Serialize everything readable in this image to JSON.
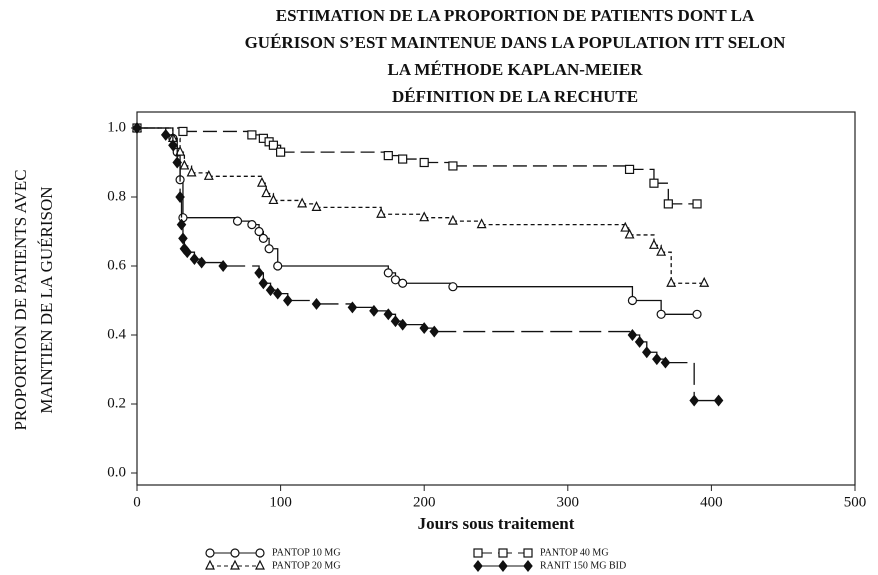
{
  "chart_data": {
    "type": "step",
    "title": [
      "ESTIMATION DE LA PROPORTION DE PATIENTS DONT LA",
      "GUÉRISON S’EST MAINTENUE DANS LA POPULATION ITT SELON",
      "LA MÉTHODE KAPLAN-MEIER",
      "DÉFINITION DE LA RECHUTE"
    ],
    "x_label": "Jours sous traitement",
    "y_label": [
      "PROPORTION DE PATIENTS AVEC",
      "MAINTIEN DE LA GUÉRISON"
    ],
    "xlim": [
      0,
      500
    ],
    "xticks": [
      0,
      100,
      200,
      300,
      400,
      500
    ],
    "ylim": [
      0,
      1
    ],
    "yticks": [
      {
        "value": 0,
        "label": "0.0"
      },
      0.2,
      0.4,
      0.6,
      0.8,
      {
        "value": 1,
        "label": "1.0"
      }
    ],
    "series": [
      {
        "name": "PANTOP 10 MG",
        "color": "#111",
        "marker": "circle",
        "line_style": "solid",
        "x": [
          0,
          25,
          28,
          30,
          32,
          70,
          80,
          85,
          88,
          92,
          98,
          175,
          180,
          185,
          220,
          345,
          365,
          390
        ],
        "values": [
          1.0,
          0.97,
          0.93,
          0.85,
          0.74,
          0.73,
          0.72,
          0.7,
          0.68,
          0.65,
          0.6,
          0.58,
          0.56,
          0.55,
          0.54,
          0.5,
          0.46,
          0.46
        ]
      },
      {
        "name": "PANTOP 20 MG",
        "color": "#111",
        "marker": "triangle",
        "line_style": "dotted",
        "x": [
          0,
          25,
          30,
          33,
          38,
          50,
          87,
          90,
          95,
          115,
          125,
          170,
          200,
          220,
          240,
          340,
          343,
          360,
          365,
          372,
          395
        ],
        "values": [
          1.0,
          0.97,
          0.93,
          0.89,
          0.87,
          0.86,
          0.84,
          0.81,
          0.79,
          0.78,
          0.77,
          0.75,
          0.74,
          0.73,
          0.72,
          0.71,
          0.69,
          0.66,
          0.64,
          0.55,
          0.55
        ]
      },
      {
        "name": "PANTOP 40 MG",
        "color": "#111",
        "marker": "square",
        "line_style": "dashed",
        "x": [
          0,
          32,
          80,
          88,
          92,
          95,
          100,
          175,
          185,
          200,
          220,
          343,
          360,
          370,
          390
        ],
        "values": [
          1.0,
          0.99,
          0.98,
          0.97,
          0.96,
          0.95,
          0.93,
          0.92,
          0.91,
          0.9,
          0.89,
          0.88,
          0.84,
          0.78,
          0.78
        ]
      },
      {
        "name": "RANIT 150 MG BID",
        "color": "#111",
        "marker": "diamond",
        "line_style": "longdash",
        "x": [
          0,
          20,
          25,
          28,
          30,
          31,
          32,
          33,
          35,
          40,
          45,
          60,
          85,
          88,
          93,
          98,
          105,
          125,
          150,
          165,
          175,
          180,
          185,
          200,
          207,
          345,
          350,
          355,
          362,
          368,
          388,
          405
        ],
        "values": [
          1.0,
          0.98,
          0.95,
          0.9,
          0.8,
          0.72,
          0.68,
          0.65,
          0.64,
          0.62,
          0.61,
          0.6,
          0.58,
          0.55,
          0.53,
          0.52,
          0.5,
          0.49,
          0.48,
          0.47,
          0.46,
          0.44,
          0.43,
          0.42,
          0.41,
          0.4,
          0.38,
          0.35,
          0.33,
          0.32,
          0.21,
          0.21
        ]
      }
    ]
  }
}
